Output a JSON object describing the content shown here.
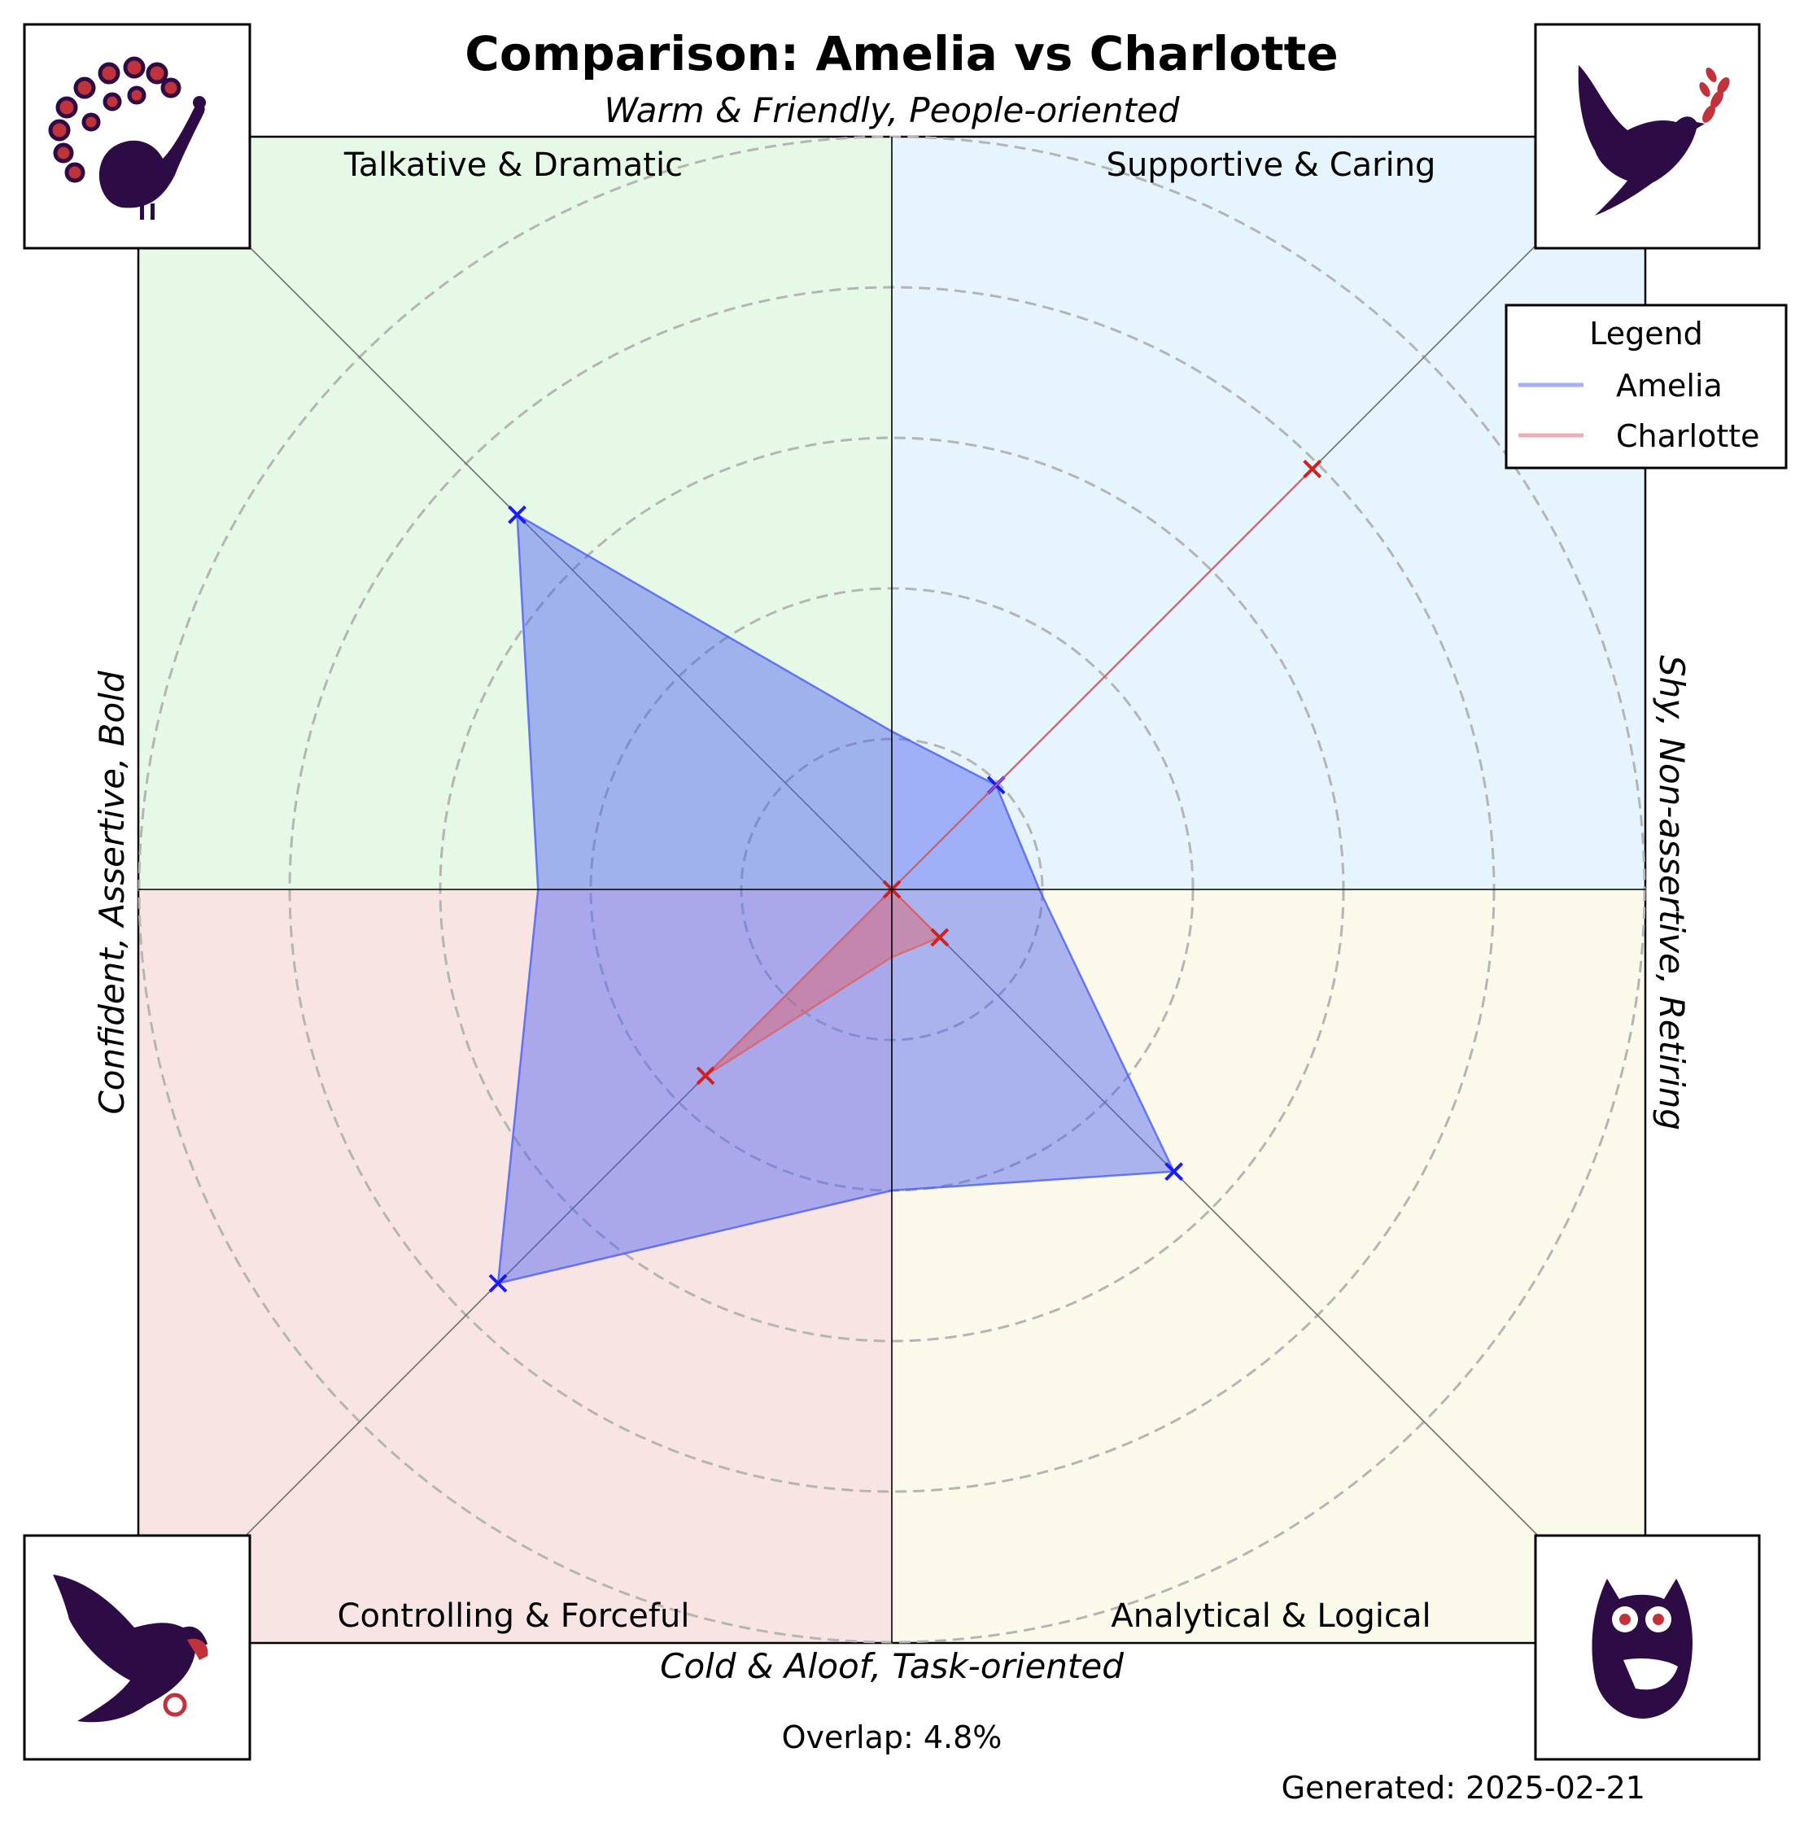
{
  "chart_data": {
    "type": "radar",
    "title": "Comparison: Amelia vs Charlotte",
    "axis_labels": {
      "top": "Warm & Friendly, People-oriented",
      "bottom": "Cold & Aloof, Task-oriented",
      "left": "Confident, Assertive, Bold",
      "right": "Shy, Non-assertive, Retiring"
    },
    "quadrants": [
      {
        "label": "Talkative & Dramatic",
        "color": "#e6f8e6",
        "animal": "peacock-icon"
      },
      {
        "label": "Supportive & Caring",
        "color": "#e5f4fd",
        "animal": "dove-icon"
      },
      {
        "label": "Controlling & Forceful",
        "color": "#f9e4e4",
        "animal": "eagle-icon"
      },
      {
        "label": "Analytical & Logical",
        "color": "#fbfaea",
        "animal": "owl-icon"
      }
    ],
    "axes": [
      {
        "angle_deg": 45,
        "quadrant": "Supportive & Caring"
      },
      {
        "angle_deg": 90,
        "quadrant": "Warm & Friendly, People-oriented"
      },
      {
        "angle_deg": 135,
        "quadrant": "Talkative & Dramatic"
      },
      {
        "angle_deg": 180,
        "quadrant": "Confident, Assertive, Bold"
      },
      {
        "angle_deg": 225,
        "quadrant": "Controlling & Forceful"
      },
      {
        "angle_deg": 270,
        "quadrant": "Cold & Aloof, Task-oriented"
      },
      {
        "angle_deg": 315,
        "quadrant": "Analytical & Logical"
      },
      {
        "angle_deg": 360,
        "quadrant": "Shy, Non-assertive, Retiring"
      }
    ],
    "radial_max": 5,
    "radial_gridlines": [
      1,
      2,
      3,
      4,
      5
    ],
    "series": [
      {
        "name": "Amelia",
        "color": "#4a5ef5",
        "values": [
          0.98,
          1.05,
          3.52,
          2.35,
          3.7,
          2.0,
          2.65,
          0.98
        ],
        "marker_indices": [
          0,
          2,
          4,
          6
        ]
      },
      {
        "name": "Charlotte",
        "color": "#e06067",
        "values": [
          3.95,
          0.0,
          0.0,
          0.0,
          1.75,
          0.45,
          0.45,
          0.0
        ],
        "marker_indices": [
          0,
          2,
          4,
          6
        ]
      }
    ],
    "legend": {
      "title": "Legend",
      "placement": "top-right"
    },
    "grid": true
  },
  "footer": {
    "overlap": "Overlap: 4.8%",
    "generated": "Generated: 2025-02-21"
  }
}
